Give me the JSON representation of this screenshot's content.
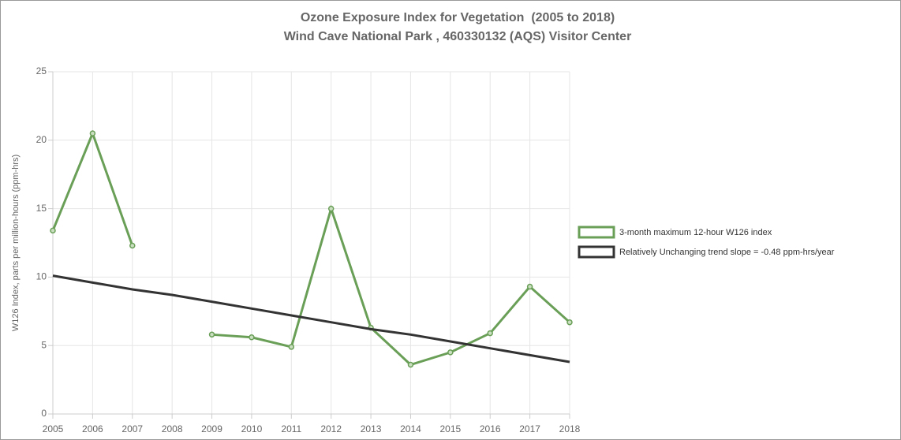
{
  "chart_data": {
    "type": "line",
    "title": "Ozone Exposure Index for Vegetation  (2005 to 2018)",
    "subtitle": "Wind Cave National Park , 460330132 (AQS) Visitor Center",
    "y_label": "W126 Index, parts per million-hours (ppm-hrs)",
    "x": [
      2005,
      2006,
      2007,
      2008,
      2009,
      2010,
      2011,
      2012,
      2013,
      2014,
      2015,
      2016,
      2017,
      2018
    ],
    "series": [
      {
        "name": "3-month maximum 12-hour W126 index",
        "color": "#6a9f58",
        "markers": true,
        "values": [
          13.4,
          20.5,
          12.3,
          null,
          5.8,
          5.6,
          4.9,
          15.0,
          6.3,
          3.6,
          4.5,
          5.9,
          9.3,
          6.7
        ]
      },
      {
        "name": "Relatively Unchanging trend slope = -0.48 ppm-hrs/year",
        "color": "#333333",
        "markers": false,
        "values": [
          10.1,
          9.6,
          9.1,
          8.7,
          8.2,
          7.7,
          7.2,
          6.7,
          6.2,
          5.8,
          5.3,
          4.8,
          4.3,
          3.8
        ]
      }
    ],
    "xlim": [
      2005,
      2018
    ],
    "xticks": [
      2005,
      2006,
      2007,
      2008,
      2009,
      2010,
      2011,
      2012,
      2013,
      2014,
      2015,
      2016,
      2017,
      2018
    ],
    "ylim": [
      0,
      25
    ],
    "yticks": [
      0,
      5,
      10,
      15,
      20,
      25
    ],
    "grid": true,
    "legend": "right"
  }
}
